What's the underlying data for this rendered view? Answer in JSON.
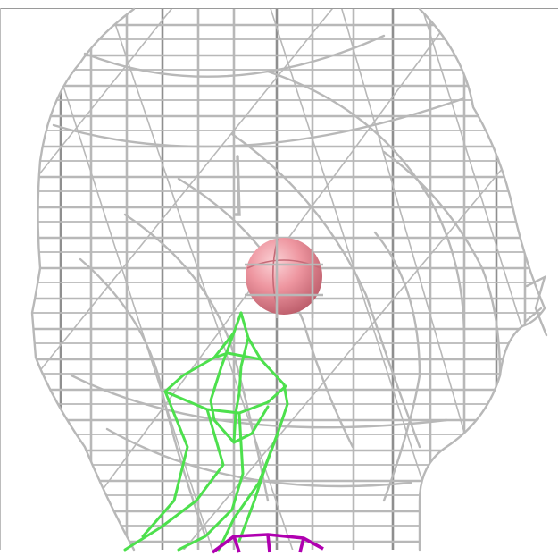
{
  "scene": {
    "background": "#ffffff",
    "head_wireframe_color": "#b8b8b8",
    "head_wireframe_dark": "#8f8f8f",
    "airway_wireframe_color": "#4de04d",
    "lower_wireframe_color": "#b000b0",
    "marker_sphere_color": "#e8808a",
    "frame_color": "#9a9a9a",
    "icons": [
      "head-wireframe-mesh",
      "airway-wireframe-mesh",
      "lower-wireframe-mesh",
      "marker-sphere"
    ]
  }
}
